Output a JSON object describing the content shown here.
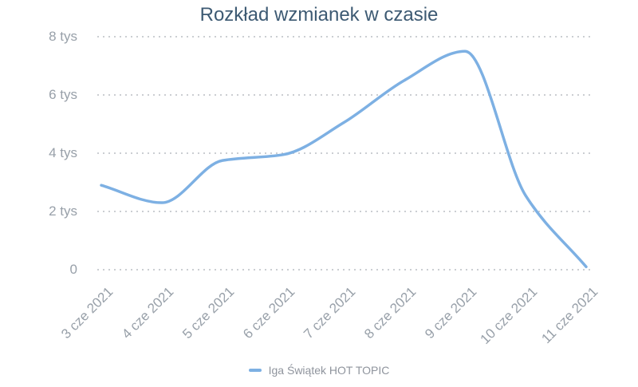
{
  "colors": {
    "background": "#ffffff",
    "title": "#3d5a73",
    "axis_label": "#98a0a9",
    "gridline": "#cbced2",
    "series_line": "#7db0e3",
    "legend_text": "#8f949d"
  },
  "chart_data": {
    "type": "line",
    "title": "Rozkład wzmianek w czasie",
    "xlabel": "",
    "ylabel": "",
    "categories": [
      "3 cze 2021",
      "4 cze 2021",
      "5 cze 2021",
      "6 cze 2021",
      "7 cze 2021",
      "8 cze 2021",
      "9 cze 2021",
      "10 cze 2021",
      "11 cze 2021"
    ],
    "series": [
      {
        "name": "Iga Świątek HOT TOPIC",
        "color": "#7db0e3",
        "values": [
          2900,
          2300,
          3750,
          3950,
          5050,
          6500,
          7500,
          2550,
          100
        ]
      }
    ],
    "ylim": [
      0,
      8000
    ],
    "yticks": [
      {
        "value": 8000,
        "label": "8 tys"
      },
      {
        "value": 6000,
        "label": "6 tys"
      },
      {
        "value": 4000,
        "label": "4 tys"
      },
      {
        "value": 2000,
        "label": "2 tys"
      },
      {
        "value": 0,
        "label": "0"
      }
    ],
    "grid": "horizontal-dotted",
    "curve": "smooth-spline",
    "legend_position": "bottom"
  }
}
